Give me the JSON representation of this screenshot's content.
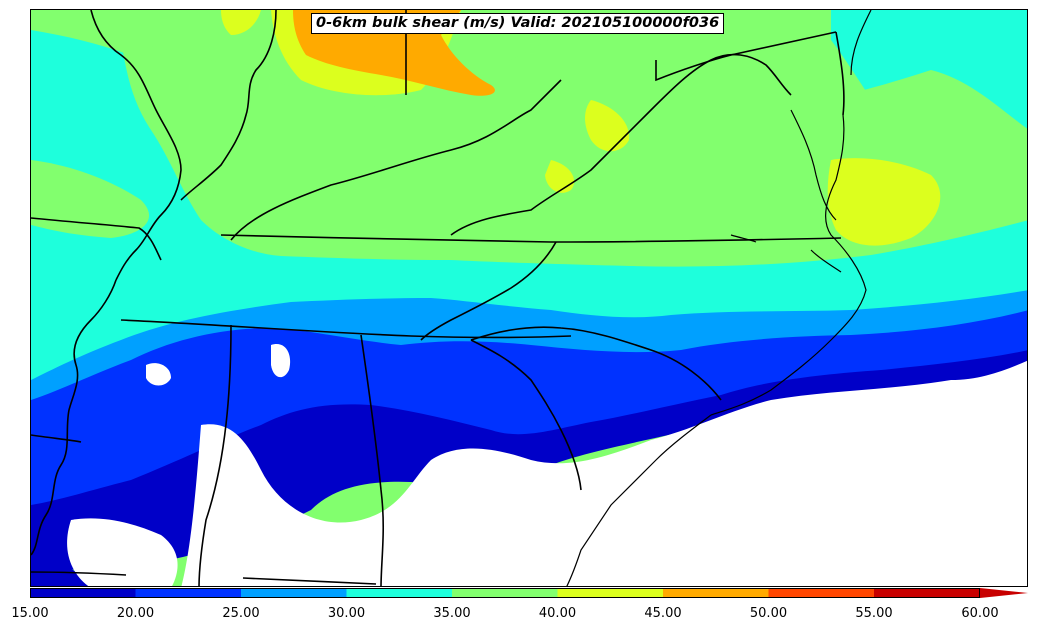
{
  "title": "0-6km bulk shear (m/s) Valid: 202105100000f036",
  "colors": {
    "bin_15_20": "#0000c8",
    "bin_20_25": "#0032ff",
    "bin_25_30": "#00a0ff",
    "bin_30_35": "#1effdc",
    "bin_35_40": "#82ff6e",
    "bin_40_45": "#dcff1e",
    "bin_45_50": "#ffaa00",
    "bin_50_55": "#ff4600",
    "bin_55_60": "#c80000",
    "background": "#ffffff",
    "borders": "#000000"
  },
  "colorbar": {
    "tick_labels": [
      "15.00",
      "20.00",
      "25.00",
      "30.00",
      "35.00",
      "40.00",
      "45.00",
      "50.00",
      "55.00",
      "60.00"
    ],
    "extend": "max"
  }
}
